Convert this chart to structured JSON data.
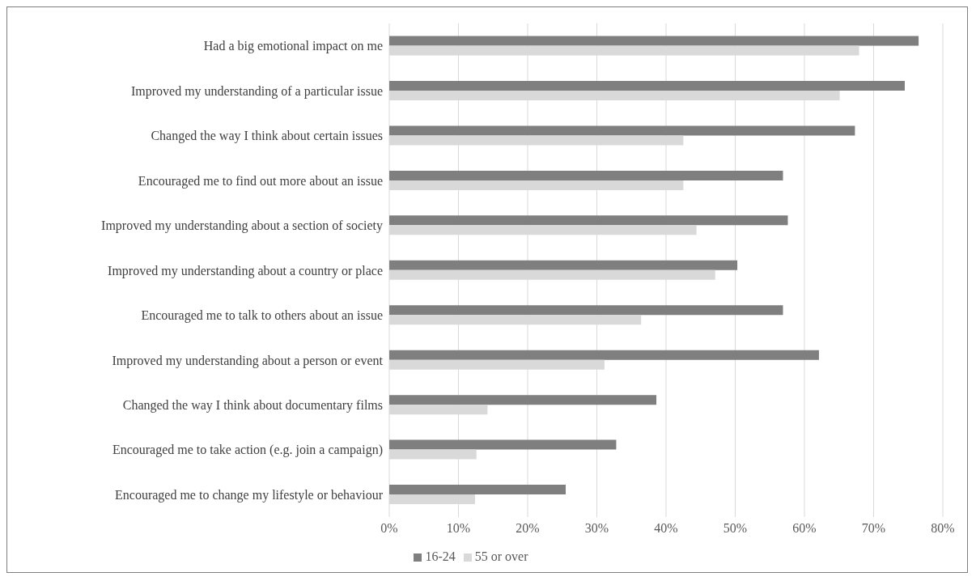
{
  "chart_data": {
    "type": "bar",
    "orientation": "horizontal",
    "categories": [
      "Had a big emotional impact on me",
      "Improved my understanding of a particular issue",
      "Changed the way I think about certain issues",
      "Encouraged me to find out more about an issue",
      "Improved my understanding about a section of society",
      "Improved my understanding about a country or place",
      "Encouraged me to talk to others about an issue",
      "Improved my understanding about a person or event",
      "Changed the way I think about documentary films",
      "Encouraged me to take action (e.g. join a campaign)",
      "Encouraged me to change my lifestyle or behaviour"
    ],
    "series": [
      {
        "name": "16-24",
        "color": "#7f7f7f",
        "values": [
          0.765,
          0.745,
          0.673,
          0.569,
          0.576,
          0.503,
          0.569,
          0.621,
          0.386,
          0.328,
          0.255
        ]
      },
      {
        "name": "55 or over",
        "color": "#d9d9d9",
        "values": [
          0.679,
          0.651,
          0.425,
          0.425,
          0.444,
          0.471,
          0.364,
          0.311,
          0.142,
          0.126,
          0.124
        ]
      }
    ],
    "xlim": [
      0,
      0.8
    ],
    "xticks": [
      {
        "value": 0,
        "label": "0%"
      },
      {
        "value": 0.1,
        "label": "10%"
      },
      {
        "value": 0.2,
        "label": "20%"
      },
      {
        "value": 0.3,
        "label": "30%"
      },
      {
        "value": 0.4,
        "label": "40%"
      },
      {
        "value": 0.5,
        "label": "50%"
      },
      {
        "value": 0.6,
        "label": "60%"
      },
      {
        "value": 0.7,
        "label": "70%"
      },
      {
        "value": 0.8,
        "label": "80%"
      }
    ],
    "grid": "x",
    "legend": "bottom"
  }
}
